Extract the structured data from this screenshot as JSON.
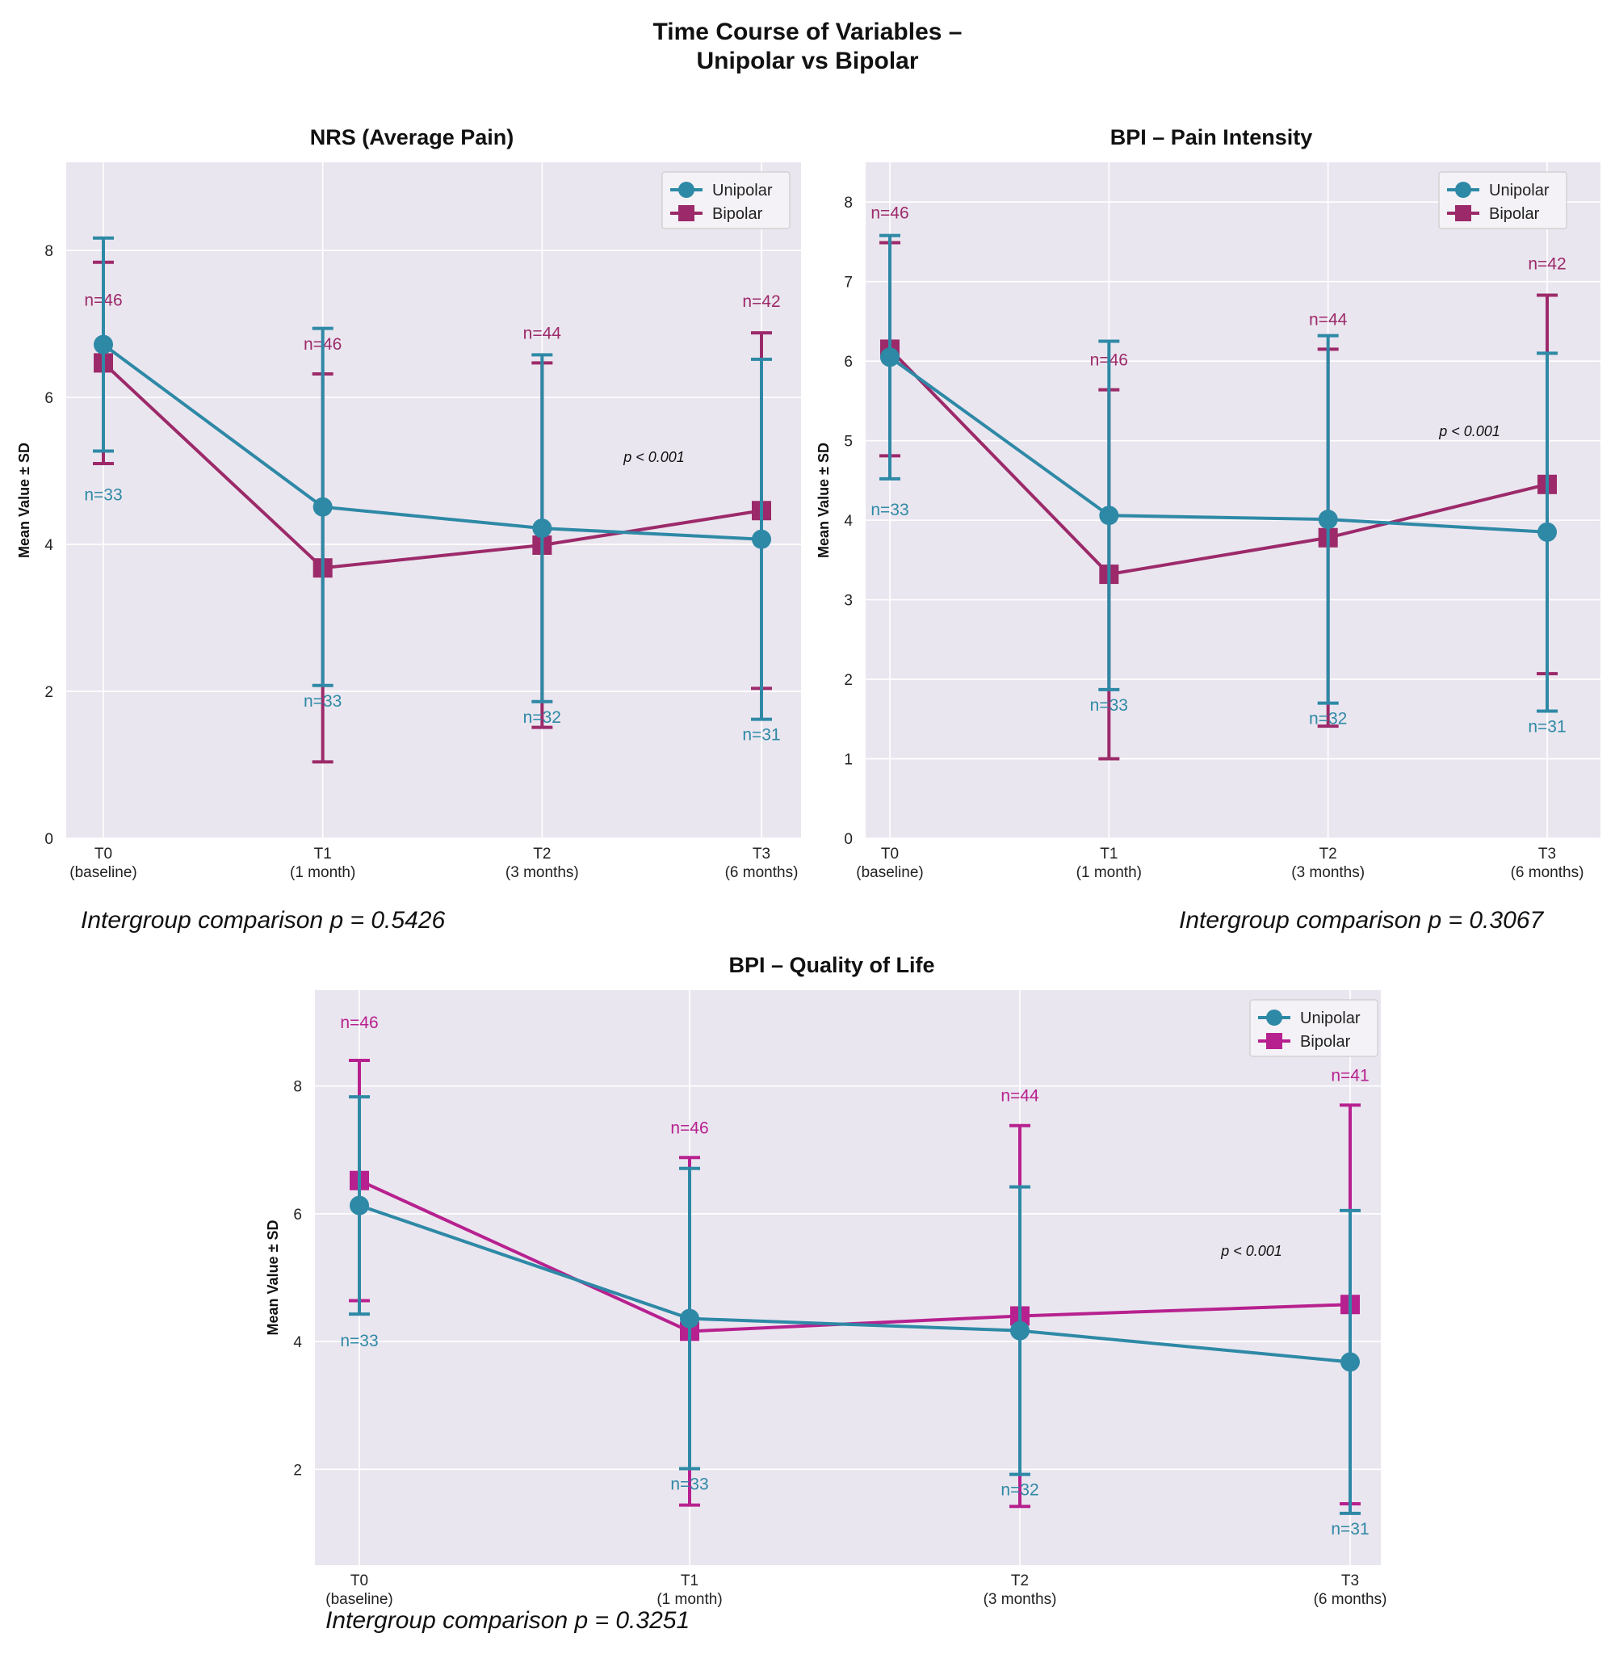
{
  "page": {
    "title_line1": "Time Course of Variables –",
    "title_line2": "Unipolar vs Bipolar"
  },
  "legend": {
    "unipolar": "Unipolar",
    "bipolar": "Bipolar"
  },
  "colors": {
    "unipolar": "#2e89a6",
    "bipolar_1": "#9c2a6a",
    "bipolar_2": "#9c2a6a",
    "bipolar_3": "#b7218f",
    "background": "#eae6ef"
  },
  "chart_data": [
    {
      "type": "line",
      "title": "NRS (Average Pain)",
      "ylabel": "Mean Value ± SD",
      "x": [
        "T0",
        "T1",
        "T2",
        "T3"
      ],
      "x_sublabels": [
        "(baseline)",
        "(1 month)",
        "(3 months)",
        "(6 months)"
      ],
      "ylim": [
        0,
        9.2
      ],
      "yticks": [
        0,
        2,
        4,
        6,
        8
      ],
      "grid": true,
      "legend_position": "top-right",
      "series": [
        {
          "name": "Unipolar",
          "marker": "circle",
          "values": [
            6.72,
            4.51,
            4.22,
            4.07
          ],
          "sd": [
            1.45,
            2.43,
            2.36,
            2.45
          ],
          "n_labels": [
            "n=33",
            "n=33",
            "n=32",
            "n=31"
          ]
        },
        {
          "name": "Bipolar",
          "marker": "square",
          "values": [
            6.47,
            3.68,
            3.99,
            4.46
          ],
          "sd": [
            1.37,
            2.64,
            2.48,
            2.42
          ],
          "n_labels": [
            "n=46",
            "n=46",
            "n=44",
            "n=42"
          ]
        }
      ],
      "annotation": {
        "text": "p < 0.001",
        "x": "T3"
      },
      "intergroup": "Intergroup comparison p = 0.5426"
    },
    {
      "type": "line",
      "title": "BPI – Pain Intensity",
      "ylabel": "Mean Value ± SD",
      "x": [
        "T0",
        "T1",
        "T2",
        "T3"
      ],
      "x_sublabels": [
        "(baseline)",
        "(1 month)",
        "(3 months)",
        "(6 months)"
      ],
      "ylim": [
        0,
        8.5
      ],
      "yticks": [
        0,
        1,
        2,
        3,
        4,
        5,
        6,
        7,
        8
      ],
      "grid": true,
      "legend_position": "top-right",
      "series": [
        {
          "name": "Unipolar",
          "marker": "circle",
          "values": [
            6.05,
            4.06,
            4.01,
            3.85
          ],
          "sd": [
            1.53,
            2.19,
            2.31,
            2.25
          ],
          "n_labels": [
            "n=33",
            "n=33",
            "n=32",
            "n=31"
          ]
        },
        {
          "name": "Bipolar",
          "marker": "square",
          "values": [
            6.15,
            3.32,
            3.78,
            4.45
          ],
          "sd": [
            1.34,
            2.32,
            2.37,
            2.38
          ],
          "n_labels": [
            "n=46",
            "n=46",
            "n=44",
            "n=42"
          ]
        }
      ],
      "annotation": {
        "text": "p < 0.001",
        "x": "T3"
      },
      "intergroup": "Intergroup comparison p = 0.3067"
    },
    {
      "type": "line",
      "title": "BPI – Quality of Life",
      "ylabel": "Mean Value ± SD",
      "x": [
        "T0",
        "T1",
        "T2",
        "T3"
      ],
      "x_sublabels": [
        "(baseline)",
        "(1 month)",
        "(3 months)",
        "(6 months)"
      ],
      "ylim": [
        0.5,
        9.5
      ],
      "yticks": [
        2,
        4,
        6,
        8
      ],
      "grid": true,
      "legend_position": "top-right",
      "series": [
        {
          "name": "Unipolar",
          "marker": "circle",
          "values": [
            6.13,
            4.36,
            4.17,
            3.68
          ],
          "sd": [
            1.7,
            2.35,
            2.25,
            2.37
          ],
          "n_labels": [
            "n=33",
            "n=33",
            "n=32",
            "n=31"
          ]
        },
        {
          "name": "Bipolar",
          "marker": "square",
          "values": [
            6.52,
            4.16,
            4.4,
            4.58
          ],
          "sd": [
            1.88,
            2.72,
            2.98,
            3.12
          ],
          "n_labels": [
            "n=46",
            "n=46",
            "n=44",
            "n=41"
          ]
        }
      ],
      "annotation": {
        "text": "p < 0.001",
        "x": "T3"
      },
      "intergroup": "Intergroup comparison p = 0.3251"
    }
  ]
}
